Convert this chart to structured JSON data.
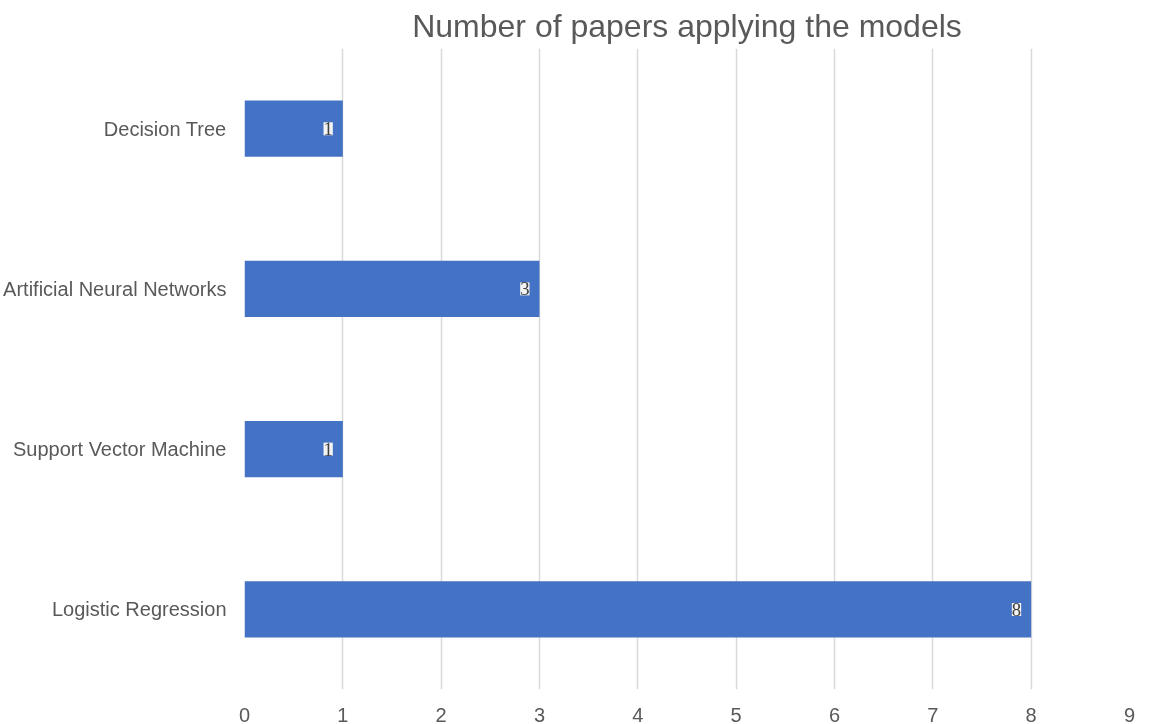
{
  "chart_data": {
    "type": "bar",
    "orientation": "horizontal",
    "title": "Number of papers applying the models",
    "categories": [
      "Decision Tree",
      "Artificial Neural Networks",
      "Support Vector Machine",
      "Logistic Regression"
    ],
    "values": [
      1,
      3,
      1,
      8
    ],
    "color": "#4472c4",
    "xlim": [
      0,
      9
    ],
    "xticks": [
      0,
      1,
      2,
      3,
      4,
      5,
      6,
      7,
      8,
      9
    ],
    "grid": "x",
    "data_labels": true
  }
}
